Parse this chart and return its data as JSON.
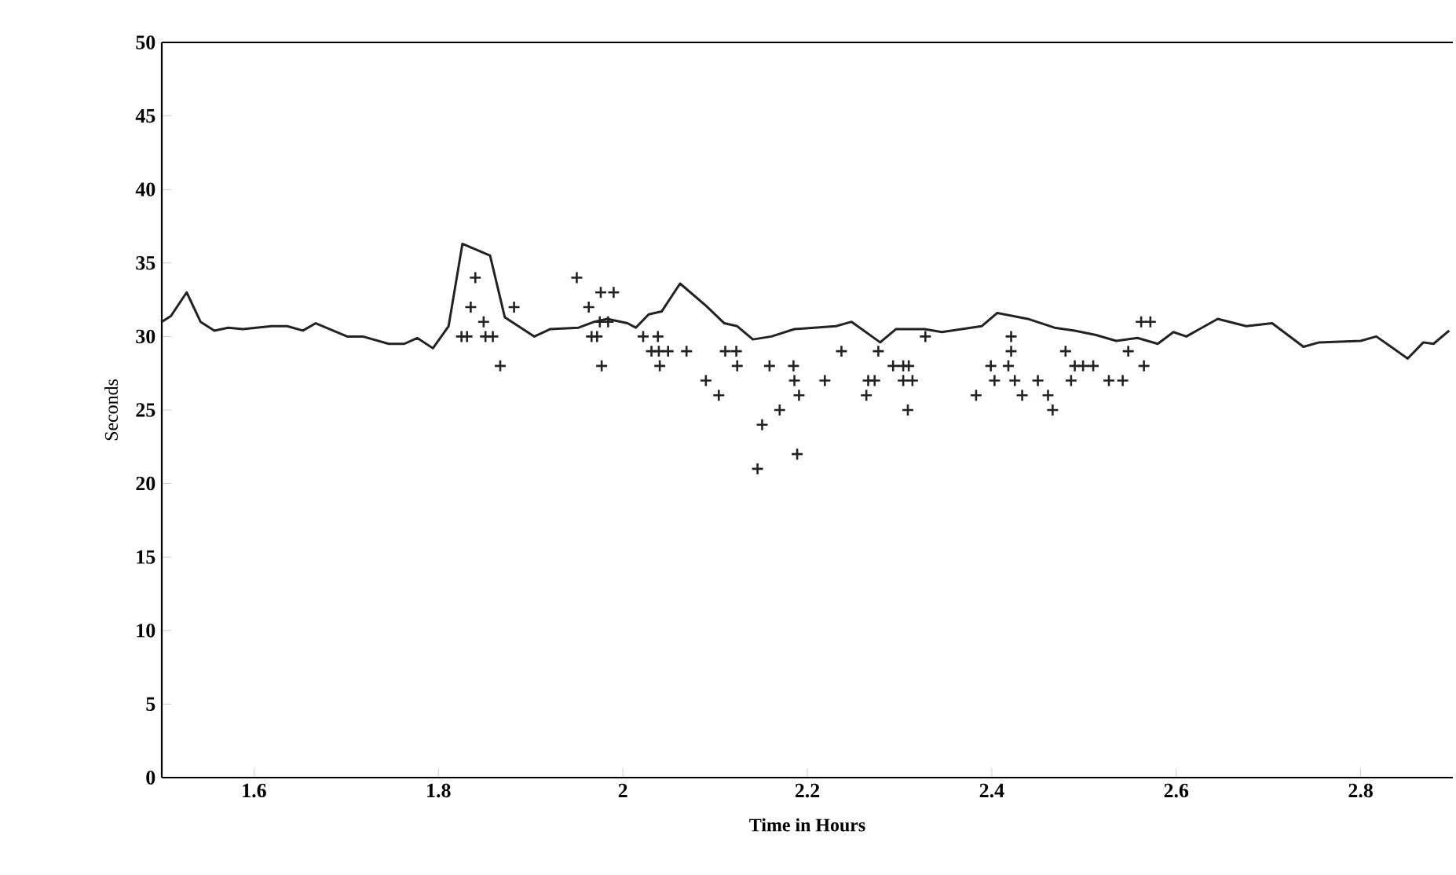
{
  "chart_data": {
    "type": "line",
    "xlabel": "Time in Hours",
    "ylabel": "Seconds",
    "xlim": [
      1.5,
      2.9
    ],
    "xticks": [
      1.6,
      1.8,
      2,
      2.2,
      2.4,
      2.6,
      2.8
    ],
    "ylim": [
      0,
      50
    ],
    "yticks": [
      0,
      5,
      10,
      15,
      20,
      25,
      30,
      35,
      40,
      45,
      50
    ],
    "series": [
      {
        "color": "#222222",
        "marker": "none",
        "line_style": "solid",
        "x": [
          1.5,
          1.51,
          1.527,
          1.542,
          1.557,
          1.572,
          1.588,
          1.619,
          1.636,
          1.653,
          1.667,
          1.701,
          1.718,
          1.746,
          1.763,
          1.777,
          1.794,
          1.811,
          1.826,
          1.856,
          1.872,
          1.904,
          1.921,
          1.952,
          1.969,
          1.983,
          2.005,
          2.014,
          2.028,
          2.042,
          2.062,
          2.09,
          2.11,
          2.124,
          2.141,
          2.161,
          2.186,
          2.231,
          2.248,
          2.279,
          2.296,
          2.327,
          2.346,
          2.389,
          2.406,
          2.439,
          2.468,
          2.49,
          2.513,
          2.535,
          2.558,
          2.58,
          2.597,
          2.611,
          2.645,
          2.676,
          2.704,
          2.738,
          2.755,
          2.8,
          2.817,
          2.851,
          2.868,
          2.879,
          2.896
        ],
        "values": [
          31,
          31.4,
          33,
          31,
          30.4,
          30.6,
          30.5,
          30.7,
          30.7,
          30.4,
          30.9,
          30,
          30,
          29.5,
          29.5,
          29.9,
          29.2,
          30.7,
          36.3,
          35.5,
          31.3,
          30,
          30.5,
          30.6,
          31,
          31.2,
          30.9,
          30.6,
          31.5,
          31.7,
          33.6,
          32.1,
          30.9,
          30.7,
          29.8,
          30,
          30.5,
          30.7,
          31,
          29.6,
          30.5,
          30.5,
          30.3,
          30.7,
          31.6,
          31.2,
          30.6,
          30.4,
          30.1,
          29.7,
          29.9,
          29.5,
          30.3,
          30,
          31.2,
          30.7,
          30.9,
          29.3,
          29.6,
          29.7,
          30,
          28.5,
          29.6,
          29.5,
          30.4
        ]
      },
      {
        "type": "scatter",
        "color": "#222222",
        "marker": "cross",
        "x": [
          1.825,
          1.831,
          1.835,
          1.84,
          1.849,
          1.851,
          1.859,
          1.867,
          1.882,
          1.95,
          1.963,
          1.966,
          1.972,
          1.975,
          1.984,
          1.976,
          1.99,
          1.977,
          2.022,
          2.038,
          2.031,
          2.039,
          2.049,
          2.04,
          2.069,
          2.09,
          2.104,
          2.111,
          2.123,
          2.124,
          2.151,
          2.146,
          2.159,
          2.17,
          2.185,
          2.186,
          2.191,
          2.189,
          2.219,
          2.237,
          2.264,
          2.266,
          2.273,
          2.277,
          2.293,
          2.304,
          2.31,
          2.304,
          2.314,
          2.309,
          2.328,
          2.383,
          2.399,
          2.403,
          2.418,
          2.421,
          2.421,
          2.425,
          2.433,
          2.45,
          2.461,
          2.466,
          2.48,
          2.486,
          2.49,
          2.499,
          2.51,
          2.527,
          2.542,
          2.548,
          2.562,
          2.572,
          2.565
        ],
        "values": [
          30,
          30,
          32,
          34,
          31,
          30,
          30,
          28,
          32,
          34,
          32,
          30,
          30,
          31,
          31,
          33,
          33,
          28,
          30,
          30,
          29,
          29,
          29,
          28,
          29,
          27,
          26,
          29,
          29,
          28,
          24,
          21,
          28,
          25,
          28,
          27,
          26,
          22,
          27,
          29,
          26,
          27,
          27,
          29,
          28,
          28,
          28,
          27,
          27,
          25,
          30,
          26,
          28,
          27,
          28,
          29,
          30,
          27,
          26,
          27,
          26,
          25,
          29,
          27,
          28,
          28,
          28,
          27,
          27,
          29,
          31,
          31,
          28
        ]
      }
    ]
  }
}
